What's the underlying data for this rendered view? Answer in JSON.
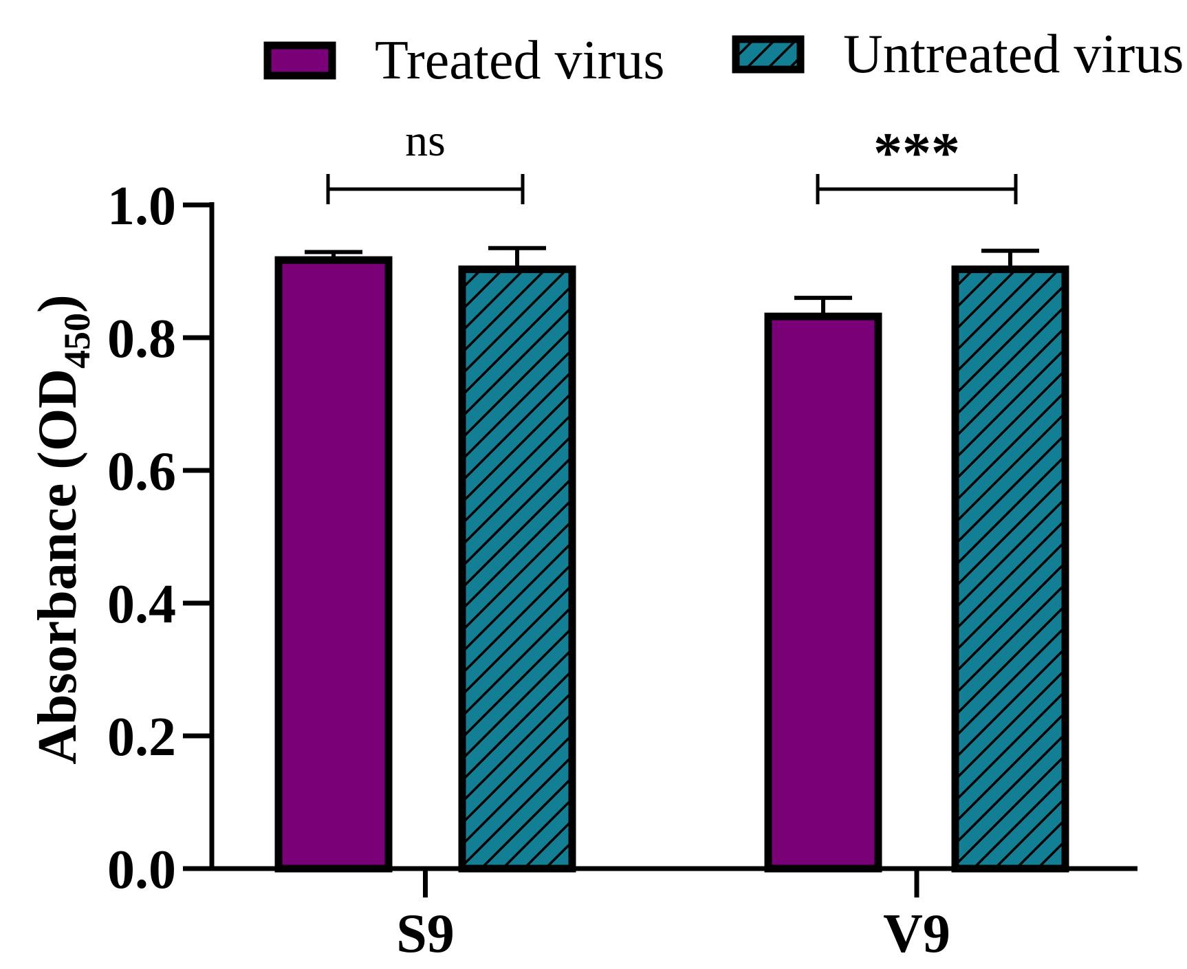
{
  "chart_data": {
    "type": "bar",
    "title": "",
    "xlabel": "",
    "ylabel": "Absorbance (OD",
    "ylabel_subscript": "450",
    "ylabel_close": ")",
    "ylim": [
      0,
      1.0
    ],
    "yticks": [
      0.0,
      0.2,
      0.4,
      0.6,
      0.8,
      1.0
    ],
    "ytick_labels": [
      "0.0",
      "0.2",
      "0.4",
      "0.6",
      "0.8",
      "1.0"
    ],
    "categories": [
      "S9",
      "V9"
    ],
    "series": [
      {
        "name": "Treated virus",
        "values": [
          0.917,
          0.832
        ],
        "errors": [
          0.012,
          0.028
        ],
        "color": "#7a0077",
        "pattern": "solid"
      },
      {
        "name": "Untreated virus",
        "values": [
          0.903,
          0.903
        ],
        "errors": [
          0.032,
          0.028
        ],
        "color": "#127f94",
        "pattern": "hatched"
      }
    ],
    "significance": [
      {
        "category": "S9",
        "label": "ns"
      },
      {
        "category": "V9",
        "label": "***"
      }
    ],
    "legend_position": "top",
    "grid": false,
    "colors": {
      "axis": "#000000",
      "hatch": "#000000"
    }
  }
}
